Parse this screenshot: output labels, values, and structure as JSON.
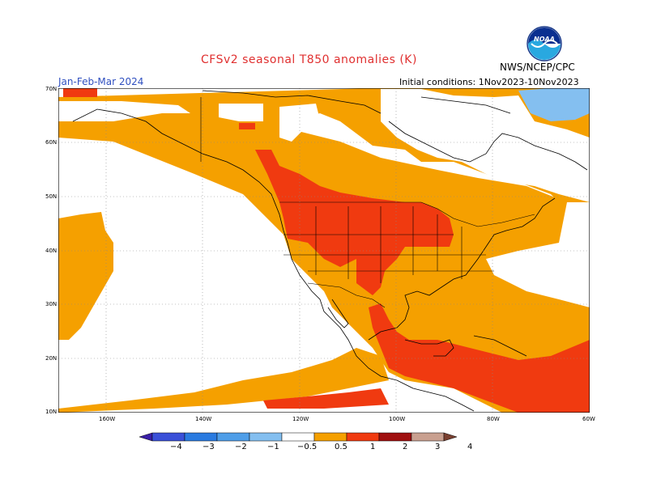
{
  "title": "CFSv2 seasonal T850 anomalies (K)",
  "period": "Jan-Feb-Mar 2024",
  "initial_conditions": "Initial conditions: 1Nov2023-10Nov2023",
  "agency": "NWS/NCEP/CPC",
  "logo_text": "NOAA",
  "lat_labels": [
    "70N",
    "60N",
    "50N",
    "40N",
    "30N",
    "20N",
    "10N"
  ],
  "lon_labels": [
    "160W",
    "140W",
    "120W",
    "100W",
    "80W",
    "60W"
  ],
  "colorbar": {
    "labels": [
      "−4",
      "−3",
      "−2",
      "−1",
      "−0.5",
      "0.5",
      "1",
      "2",
      "3",
      "4"
    ],
    "colors": [
      "#3a1fa8",
      "#3a50d8",
      "#2a7be0",
      "#4f9ee8",
      "#84bff0",
      "#ffffff",
      "#f5a000",
      "#f03a10",
      "#a01010",
      "#c9a090",
      "#7a4030"
    ]
  }
}
